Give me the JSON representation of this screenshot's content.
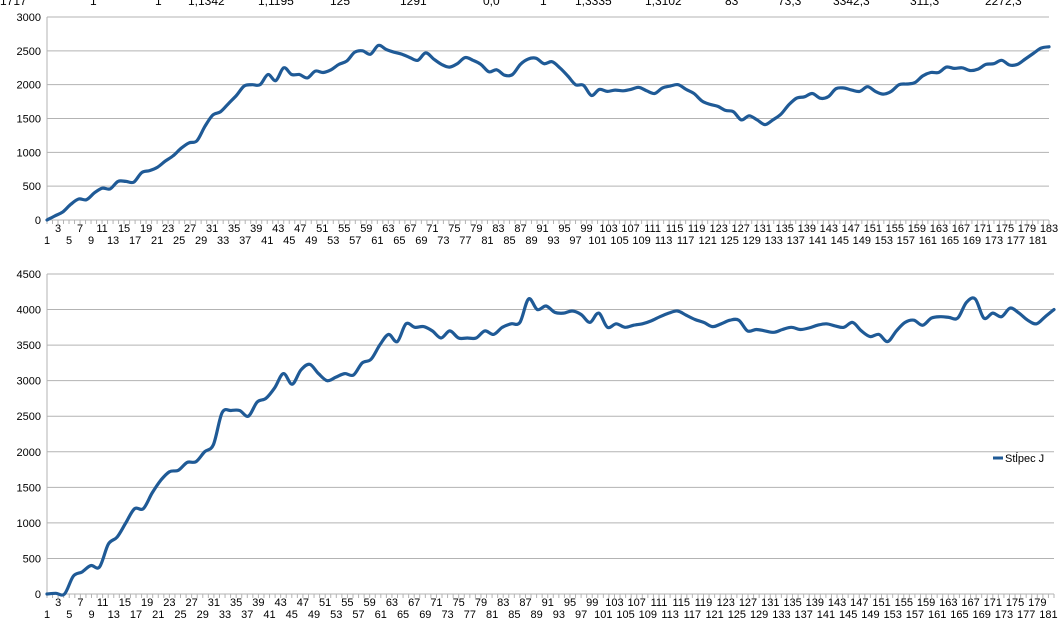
{
  "clipped_header_row": [
    "1717",
    "1",
    "1",
    "1,1342",
    "1,1195",
    "125",
    "1291",
    "0,0",
    "1",
    "1,3335",
    "1,3102",
    "83",
    "73,3",
    "3342,3",
    "311,3",
    "2272,3"
  ],
  "colors": {
    "series": "#1f5a96",
    "grid": "#b3b3b3",
    "axis": "#b3b3b3"
  },
  "chart_data": [
    {
      "type": "line",
      "title": "",
      "xlabel": "",
      "ylabel": "",
      "ylim": [
        0,
        3000
      ],
      "yticks": [
        "0",
        "500",
        "1000",
        "1500",
        "2000",
        "2500",
        "3000"
      ],
      "grid": true,
      "legend": "none",
      "categories_range": [
        1,
        183
      ],
      "x_tick_labels": [
        "1",
        "3",
        "5",
        "7",
        "9",
        "11",
        "13",
        "15",
        "17",
        "19",
        "21",
        "23",
        "25",
        "27",
        "29",
        "31",
        "33",
        "35",
        "37",
        "39",
        "41",
        "43",
        "45",
        "47",
        "49",
        "51",
        "53",
        "55",
        "57",
        "59",
        "61",
        "63",
        "65",
        "67",
        "69",
        "71",
        "73",
        "75",
        "77",
        "79",
        "81",
        "83",
        "85",
        "87",
        "89",
        "91",
        "93",
        "95",
        "97",
        "99",
        "101",
        "103",
        "105",
        "107",
        "109",
        "111",
        "113",
        "115",
        "117",
        "119",
        "121",
        "123",
        "125",
        "127",
        "129",
        "131",
        "133",
        "135",
        "137",
        "139",
        "141",
        "143",
        "145",
        "147",
        "149",
        "151",
        "153",
        "155",
        "157",
        "159",
        "161",
        "163",
        "165",
        "167",
        "169",
        "171",
        "173",
        "175",
        "177",
        "179",
        "181",
        "183"
      ],
      "series": [
        {
          "name": "",
          "values": [
            0,
            60,
            120,
            230,
            310,
            300,
            400,
            470,
            460,
            570,
            570,
            560,
            700,
            730,
            780,
            870,
            950,
            1060,
            1140,
            1170,
            1380,
            1550,
            1600,
            1720,
            1840,
            1980,
            2000,
            2000,
            2150,
            2060,
            2250,
            2150,
            2150,
            2100,
            2200,
            2180,
            2220,
            2300,
            2350,
            2480,
            2500,
            2450,
            2580,
            2520,
            2480,
            2450,
            2400,
            2360,
            2470,
            2380,
            2300,
            2260,
            2310,
            2400,
            2360,
            2300,
            2190,
            2220,
            2140,
            2150,
            2300,
            2380,
            2390,
            2310,
            2340,
            2250,
            2130,
            2000,
            1990,
            1840,
            1930,
            1900,
            1920,
            1910,
            1930,
            1960,
            1910,
            1870,
            1950,
            1980,
            2000,
            1930,
            1870,
            1760,
            1710,
            1680,
            1620,
            1600,
            1480,
            1540,
            1480,
            1410,
            1480,
            1560,
            1700,
            1800,
            1820,
            1870,
            1800,
            1820,
            1940,
            1950,
            1920,
            1900,
            1970,
            1900,
            1860,
            1900,
            2000,
            2010,
            2030,
            2130,
            2180,
            2180,
            2260,
            2240,
            2250,
            2210,
            2230,
            2300,
            2310,
            2360,
            2290,
            2300,
            2380,
            2460,
            2540,
            2560
          ],
          "values_note_skip": true
        }
      ]
    },
    {
      "type": "line",
      "title": "",
      "xlabel": "",
      "ylabel": "",
      "ylim": [
        0,
        4500
      ],
      "yticks": [
        "0",
        "500",
        "1000",
        "1500",
        "2000",
        "2500",
        "3000",
        "3500",
        "4000",
        "4500"
      ],
      "grid": true,
      "legend": "right",
      "categories_range": [
        1,
        182
      ],
      "x_tick_labels": [
        "1",
        "3",
        "5",
        "7",
        "9",
        "11",
        "13",
        "15",
        "17",
        "19",
        "21",
        "23",
        "25",
        "27",
        "29",
        "31",
        "33",
        "35",
        "37",
        "39",
        "41",
        "43",
        "45",
        "47",
        "49",
        "51",
        "53",
        "55",
        "57",
        "59",
        "61",
        "63",
        "65",
        "67",
        "69",
        "71",
        "73",
        "75",
        "77",
        "79",
        "81",
        "83",
        "85",
        "87",
        "89",
        "91",
        "93",
        "95",
        "97",
        "99",
        "101",
        "103",
        "105",
        "107",
        "109",
        "111",
        "113",
        "115",
        "117",
        "119",
        "121",
        "123",
        "125",
        "127",
        "129",
        "131",
        "133",
        "135",
        "137",
        "139",
        "141",
        "143",
        "145",
        "147",
        "149",
        "151",
        "153",
        "155",
        "157",
        "159",
        "161",
        "163",
        "165",
        "167",
        "169",
        "171",
        "173",
        "175",
        "177",
        "179",
        "181"
      ],
      "series": [
        {
          "name": "Stĺpec J",
          "values": [
            0,
            10,
            0,
            250,
            310,
            400,
            380,
            700,
            800,
            1000,
            1200,
            1200,
            1420,
            1600,
            1720,
            1740,
            1850,
            1860,
            2000,
            2100,
            2550,
            2580,
            2580,
            2500,
            2700,
            2750,
            2900,
            3100,
            2950,
            3150,
            3230,
            3100,
            3000,
            3050,
            3100,
            3080,
            3250,
            3300,
            3500,
            3650,
            3550,
            3800,
            3750,
            3760,
            3700,
            3600,
            3700,
            3600,
            3600,
            3600,
            3700,
            3650,
            3750,
            3800,
            3820,
            4150,
            4000,
            4050,
            3960,
            3950,
            3980,
            3930,
            3820,
            3950,
            3750,
            3800,
            3750,
            3780,
            3800,
            3840,
            3900,
            3950,
            3980,
            3920,
            3860,
            3820,
            3760,
            3800,
            3850,
            3850,
            3700,
            3720,
            3700,
            3680,
            3720,
            3750,
            3720,
            3740,
            3780,
            3800,
            3770,
            3750,
            3820,
            3700,
            3620,
            3650,
            3550,
            3700,
            3820,
            3850,
            3780,
            3880,
            3900,
            3890,
            3880,
            4100,
            4150,
            3880,
            3950,
            3900,
            4020,
            3950,
            3850,
            3800,
            3900,
            4000
          ]
        }
      ]
    }
  ]
}
